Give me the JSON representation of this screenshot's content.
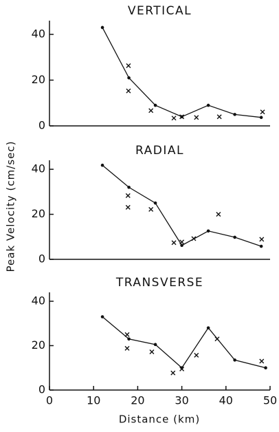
{
  "chart_data": [
    {
      "type": "line",
      "title": "VERTICAL",
      "line": {
        "x": [
          12,
          18,
          24,
          30,
          36,
          42,
          48
        ],
        "y": [
          43,
          21,
          9,
          4,
          9,
          5,
          3.7
        ]
      },
      "markers": {
        "x": [
          17.9,
          17.9,
          23,
          28.2,
          30,
          33.3,
          38.5,
          48.3
        ],
        "y": [
          26.3,
          15.3,
          6.7,
          3.4,
          4,
          3.7,
          4,
          6.1
        ]
      },
      "xlim": [
        0,
        50
      ],
      "ylim": [
        0,
        46
      ],
      "yticks": [
        0,
        20,
        40
      ],
      "color": "#111"
    },
    {
      "type": "line",
      "title": "RADIAL",
      "ylabel": "Peak Velocity (cm/sec)",
      "line": {
        "x": [
          12,
          18,
          24,
          30,
          36,
          42,
          48
        ],
        "y": [
          41.8,
          32,
          25,
          6.2,
          12.6,
          9.8,
          5.8
        ]
      },
      "markers": {
        "x": [
          17.8,
          17.8,
          23,
          28.2,
          30,
          32.7,
          38.3,
          48.1
        ],
        "y": [
          28.3,
          23.1,
          22.2,
          7.4,
          7.7,
          9.2,
          20,
          8.9
        ]
      },
      "xlim": [
        0,
        50
      ],
      "ylim": [
        0,
        44
      ],
      "yticks": [
        0,
        20,
        40
      ],
      "color": "#111"
    },
    {
      "type": "line",
      "title": "TRANSVERSE",
      "xlabel": "Distance (km)",
      "line": {
        "x": [
          12,
          18,
          24,
          30,
          36,
          42,
          49
        ],
        "y": [
          33,
          23,
          20.5,
          10,
          28,
          13.5,
          10
        ]
      },
      "markers": {
        "x": [
          17.6,
          17.6,
          23.2,
          28,
          30,
          33.3,
          38,
          48.1
        ],
        "y": [
          25,
          18.8,
          17.2,
          7.7,
          9.5,
          15.7,
          23,
          13
        ]
      },
      "xlim": [
        0,
        50
      ],
      "ylim": [
        0,
        44
      ],
      "yticks": [
        0,
        20,
        40
      ],
      "xticks": [
        0,
        10,
        20,
        30,
        40,
        50
      ],
      "color": "#111"
    }
  ]
}
